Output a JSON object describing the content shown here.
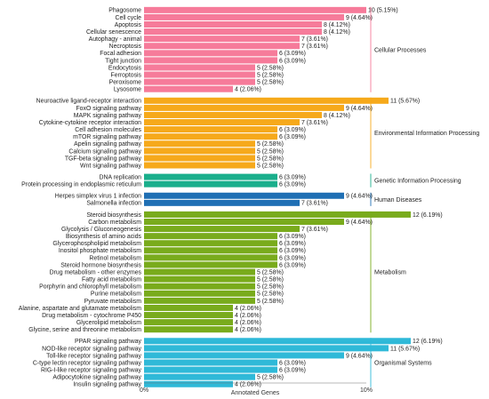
{
  "chart_data": {
    "type": "bar",
    "orientation": "horizontal",
    "xlabel": "Annotated Genes",
    "xlim": [
      0,
      10
    ],
    "x_ticks": [
      "0%",
      "10%"
    ],
    "grid": false,
    "legend": "none",
    "groups": [
      {
        "name": "Cellular Processes",
        "color": "#f67b9a",
        "bracket_color": "#f67b9a",
        "items": [
          {
            "label": "Phagosome",
            "value": 10,
            "text": "10 (5.15%)"
          },
          {
            "label": "Cell cycle",
            "value": 9,
            "text": "9 (4.64%)"
          },
          {
            "label": "Apoptosis",
            "value": 8,
            "text": "8 (4.12%)"
          },
          {
            "label": "Cellular senescence",
            "value": 8,
            "text": "8 (4.12%)"
          },
          {
            "label": "Autophagy - animal",
            "value": 7,
            "text": "7 (3.61%)"
          },
          {
            "label": "Necroptosis",
            "value": 7,
            "text": "7 (3.61%)"
          },
          {
            "label": "Focal adhesion",
            "value": 6,
            "text": "6 (3.09%)"
          },
          {
            "label": "Tight junction",
            "value": 6,
            "text": "6 (3.09%)"
          },
          {
            "label": "Endocytosis",
            "value": 5,
            "text": "5 (2.58%)"
          },
          {
            "label": "Ferroptosis",
            "value": 5,
            "text": "5 (2.58%)"
          },
          {
            "label": "Peroxisome",
            "value": 5,
            "text": "5 (2.58%)"
          },
          {
            "label": "Lysosome",
            "value": 4,
            "text": "4 (2.06%)"
          }
        ]
      },
      {
        "name": "Environmental Information Processing",
        "color": "#f6a91b",
        "bracket_color": "#f6a91b",
        "items": [
          {
            "label": "Neuroactive ligand-receptor interaction",
            "value": 11,
            "text": "11 (5.67%)"
          },
          {
            "label": "FoxO signaling pathway",
            "value": 9,
            "text": "9 (4.64%)"
          },
          {
            "label": "MAPK signaling pathway",
            "value": 8,
            "text": "8 (4.12%)"
          },
          {
            "label": "Cytokine-cytokine receptor interaction",
            "value": 7,
            "text": "7 (3.61%)"
          },
          {
            "label": "Cell adhesion molecules",
            "value": 6,
            "text": "6 (3.09%)"
          },
          {
            "label": "mTOR signaling pathway",
            "value": 6,
            "text": "6 (3.09%)"
          },
          {
            "label": "Apelin signaling pathway",
            "value": 5,
            "text": "5 (2.58%)"
          },
          {
            "label": "Calcium signaling pathway",
            "value": 5,
            "text": "5 (2.58%)"
          },
          {
            "label": "TGF-beta signaling pathway",
            "value": 5,
            "text": "5 (2.58%)"
          },
          {
            "label": "Wnt signaling pathway",
            "value": 5,
            "text": "5 (2.58%)"
          }
        ]
      },
      {
        "name": "Genetic Information Processing",
        "color": "#1aaf8c",
        "bracket_color": "#1aaf8c",
        "items": [
          {
            "label": "DNA replication",
            "value": 6,
            "text": "6 (3.09%)"
          },
          {
            "label": "Protein processing in endoplasmic reticulum",
            "value": 6,
            "text": "6 (3.09%)"
          }
        ]
      },
      {
        "name": "Human Diseases",
        "color": "#1f6fb4",
        "bracket_color": "#1f6fb4",
        "items": [
          {
            "label": "Herpes simplex virus 1 infection",
            "value": 9,
            "text": "9 (4.64%)"
          },
          {
            "label": "Salmonella infection",
            "value": 7,
            "text": "7 (3.61%)"
          }
        ]
      },
      {
        "name": "Metabolism",
        "color": "#79ab1c",
        "bracket_color": "#79ab1c",
        "items": [
          {
            "label": "Steroid biosynthesis",
            "value": 12,
            "text": "12 (6.19%)"
          },
          {
            "label": "Carbon metabolism",
            "value": 9,
            "text": "9 (4.64%)"
          },
          {
            "label": "Glycolysis / Gluconeogenesis",
            "value": 7,
            "text": "7 (3.61%)"
          },
          {
            "label": "Biosynthesis of amino acids",
            "value": 6,
            "text": "6 (3.09%)"
          },
          {
            "label": "Glycerophospholipid metabolism",
            "value": 6,
            "text": "6 (3.09%)"
          },
          {
            "label": "Inositol phosphate metabolism",
            "value": 6,
            "text": "6 (3.09%)"
          },
          {
            "label": "Retinol metabolism",
            "value": 6,
            "text": "6 (3.09%)"
          },
          {
            "label": "Steroid hormone biosynthesis",
            "value": 6,
            "text": "6 (3.09%)"
          },
          {
            "label": "Drug metabolism - other enzymes",
            "value": 5,
            "text": "5 (2.58%)"
          },
          {
            "label": "Fatty acid metabolism",
            "value": 5,
            "text": "5 (2.58%)"
          },
          {
            "label": "Porphyrin and chlorophyll metabolism",
            "value": 5,
            "text": "5 (2.58%)"
          },
          {
            "label": "Purine metabolism",
            "value": 5,
            "text": "5 (2.58%)"
          },
          {
            "label": "Pyruvate metabolism",
            "value": 5,
            "text": "5 (2.58%)"
          },
          {
            "label": "Alanine, aspartate and glutamate metabolism",
            "value": 4,
            "text": "4 (2.06%)"
          },
          {
            "label": "Drug metabolism - cytochrome P450",
            "value": 4,
            "text": "4 (2.06%)"
          },
          {
            "label": "Glycerolipid metabolism",
            "value": 4,
            "text": "4 (2.06%)"
          },
          {
            "label": "Glycine, serine and threonine metabolism",
            "value": 4,
            "text": "4 (2.06%)"
          }
        ]
      },
      {
        "name": "Organismal Systems",
        "color": "#2fb9d8",
        "bracket_color": "#2fb9d8",
        "items": [
          {
            "label": "PPAR signaling pathway",
            "value": 12,
            "text": "12 (6.19%)"
          },
          {
            "label": "NOD-like receptor signaling pathway",
            "value": 11,
            "text": "11 (5.67%)"
          },
          {
            "label": "Toll-like receptor signaling pathway",
            "value": 9,
            "text": "9 (4.64%)"
          },
          {
            "label": "C-type lectin receptor signaling pathway",
            "value": 6,
            "text": "6 (3.09%)"
          },
          {
            "label": "RIG-I-like receptor signaling pathway",
            "value": 6,
            "text": "6 (3.09%)"
          },
          {
            "label": "Adipocytokine signaling pathway",
            "value": 5,
            "text": "5 (2.58%)"
          },
          {
            "label": "Insulin signaling pathway",
            "value": 4,
            "text": "4 (2.06%)"
          }
        ]
      }
    ]
  }
}
